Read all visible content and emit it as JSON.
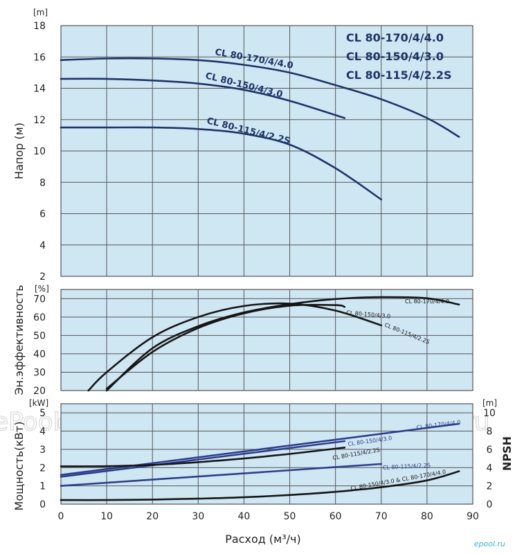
{
  "watermark": "ePool.ru",
  "brand": "epool.ru",
  "xlabel": "Расход (м³/ч)",
  "x_ticks": [
    "0",
    "10",
    "20",
    "30",
    "40",
    "50",
    "60",
    "70",
    "80",
    "90"
  ],
  "legend": [
    "CL 80-170/4/4.0",
    "CL 80-150/4/3.0",
    "CL 80-115/4/2.2S"
  ],
  "colors": {
    "navy": "#1e3466",
    "black": "#151515",
    "blue": "#2d3e8c",
    "plot_bg": "#cfe6f3"
  },
  "chart_data": [
    {
      "type": "line",
      "ylabel": "Напор (м)",
      "yunit": "[m]",
      "xlim": [
        0,
        90
      ],
      "ylim": [
        2,
        18
      ],
      "y_ticks": [
        "2",
        "4",
        "6",
        "8",
        "10",
        "12",
        "14",
        "16",
        "18"
      ],
      "grid": true,
      "series": [
        {
          "name": "CL 80-170/4/4.0",
          "x": [
            0,
            10,
            20,
            30,
            40,
            50,
            60,
            70,
            80,
            87
          ],
          "y": [
            15.8,
            15.9,
            15.9,
            15.8,
            15.5,
            15.0,
            14.2,
            13.3,
            12.1,
            10.9
          ]
        },
        {
          "name": "CL 80-150/4/3.0",
          "x": [
            0,
            10,
            20,
            30,
            40,
            50,
            62
          ],
          "y": [
            14.6,
            14.6,
            14.5,
            14.3,
            13.9,
            13.2,
            12.1
          ]
        },
        {
          "name": "CL 80-115/4/2.2S",
          "x": [
            0,
            10,
            20,
            30,
            40,
            50,
            60,
            70
          ],
          "y": [
            11.5,
            11.5,
            11.5,
            11.4,
            11.1,
            10.4,
            8.9,
            6.9
          ]
        }
      ]
    },
    {
      "type": "line",
      "ylabel": "Эн.эффективность",
      "yunit": "[%]",
      "xlim": [
        0,
        90
      ],
      "ylim": [
        20,
        75
      ],
      "y_ticks": [
        "20",
        "30",
        "40",
        "50",
        "60",
        "70"
      ],
      "grid": true,
      "series": [
        {
          "name": "CL 80-170/4/4.0",
          "x": [
            10,
            20,
            30,
            40,
            50,
            60,
            70,
            80,
            87
          ],
          "y": [
            20,
            43,
            55,
            62.5,
            67,
            69.8,
            70.8,
            70.2,
            66.8
          ]
        },
        {
          "name": "CL 80-150/4/3.0",
          "x": [
            10,
            20,
            30,
            40,
            50,
            60,
            62
          ],
          "y": [
            21,
            41,
            54,
            62,
            66.2,
            66.5,
            65.5
          ]
        },
        {
          "name": "CL 80-115/4/2.2S",
          "x": [
            6,
            10,
            20,
            30,
            40,
            50,
            60,
            70
          ],
          "y": [
            20,
            30,
            49,
            60,
            66,
            67.3,
            63.5,
            55.5
          ]
        }
      ]
    },
    {
      "type": "line",
      "ylabel": "Мощность(кВт)",
      "yunit": "[kW]",
      "xlim": [
        0,
        90
      ],
      "ylim": [
        0,
        5.5
      ],
      "y_ticks": [
        "0",
        "1",
        "2",
        "3",
        "4",
        "5"
      ],
      "y2label": "NPSH",
      "y2unit": "[m]",
      "y2lim": [
        0,
        11
      ],
      "y2_ticks": [
        "0",
        "2",
        "4",
        "6",
        "8",
        "10"
      ],
      "grid": true,
      "series": [
        {
          "name": "CL 80-170/4/4.0",
          "x": [
            0,
            87
          ],
          "y": [
            1.6,
            4.4
          ]
        },
        {
          "name": "CL 80-150/4/3.0",
          "x": [
            0,
            62
          ],
          "y": [
            1.5,
            3.45
          ]
        },
        {
          "name": "CL 80-115/4/2.2S",
          "x": [
            0,
            10,
            20,
            30,
            40,
            50,
            62
          ],
          "y": [
            2.07,
            2.08,
            2.15,
            2.3,
            2.5,
            2.75,
            3.1
          ]
        },
        {
          "name": "CL 80-115/4/2.2S",
          "axis": "y2",
          "x": [
            0,
            70
          ],
          "y": [
            2.0,
            4.4
          ]
        },
        {
          "name": "CL 80-150/4/3.0 & CL 80-170/4/4.0",
          "axis": "y2",
          "x": [
            0,
            10,
            20,
            30,
            40,
            50,
            60,
            70,
            80,
            87
          ],
          "y": [
            0.45,
            0.45,
            0.5,
            0.6,
            0.75,
            1.0,
            1.35,
            1.85,
            2.6,
            3.6
          ]
        }
      ]
    }
  ]
}
